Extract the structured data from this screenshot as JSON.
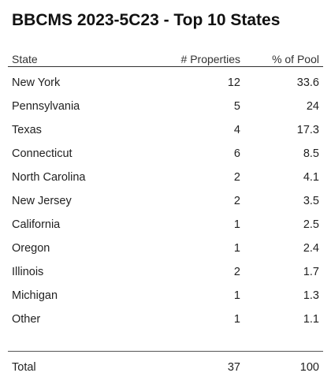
{
  "title": "BBCMS 2023-5C23 - Top 10 States",
  "table": {
    "headers": {
      "state": "State",
      "properties": "# Properties",
      "pool": "% of Pool"
    },
    "rows": [
      {
        "state": "New York",
        "properties": "12",
        "pool": "33.6"
      },
      {
        "state": "Pennsylvania",
        "properties": "5",
        "pool": "24"
      },
      {
        "state": "Texas",
        "properties": "4",
        "pool": "17.3"
      },
      {
        "state": "Connecticut",
        "properties": "6",
        "pool": "8.5"
      },
      {
        "state": "North Carolina",
        "properties": "2",
        "pool": "4.1"
      },
      {
        "state": "New Jersey",
        "properties": "2",
        "pool": "3.5"
      },
      {
        "state": "California",
        "properties": "1",
        "pool": "2.5"
      },
      {
        "state": "Oregon",
        "properties": "1",
        "pool": "2.4"
      },
      {
        "state": "Illinois",
        "properties": "2",
        "pool": "1.7"
      },
      {
        "state": "Michigan",
        "properties": "1",
        "pool": "1.3"
      },
      {
        "state": "Other",
        "properties": "1",
        "pool": "1.1"
      }
    ],
    "total": {
      "label": "Total",
      "properties": "37",
      "pool": "100"
    }
  }
}
